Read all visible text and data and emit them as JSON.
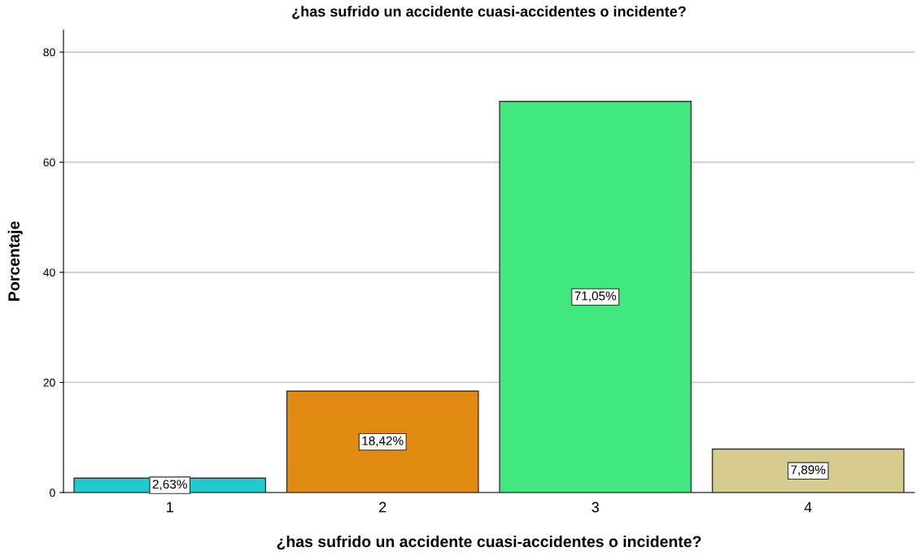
{
  "chart_data": {
    "type": "bar",
    "title": "¿has sufrido un accidente cuasi-accidentes o incidente?",
    "xlabel": "¿has sufrido un accidente cuasi-accidentes o incidente?",
    "ylabel": "Porcentaje",
    "categories": [
      "1",
      "2",
      "3",
      "4"
    ],
    "values": [
      2.63,
      18.42,
      71.05,
      7.89
    ],
    "colors": [
      "#22c9cf",
      "#e08a12",
      "#40e87e",
      "#d5cc8e"
    ],
    "value_labels": [
      "2,63%",
      "18,42%",
      "71,05%",
      "7,89%"
    ],
    "ylim": [
      0,
      84
    ],
    "yticks": [
      0,
      20,
      40,
      60,
      80
    ],
    "grid": "y",
    "legend": false
  }
}
